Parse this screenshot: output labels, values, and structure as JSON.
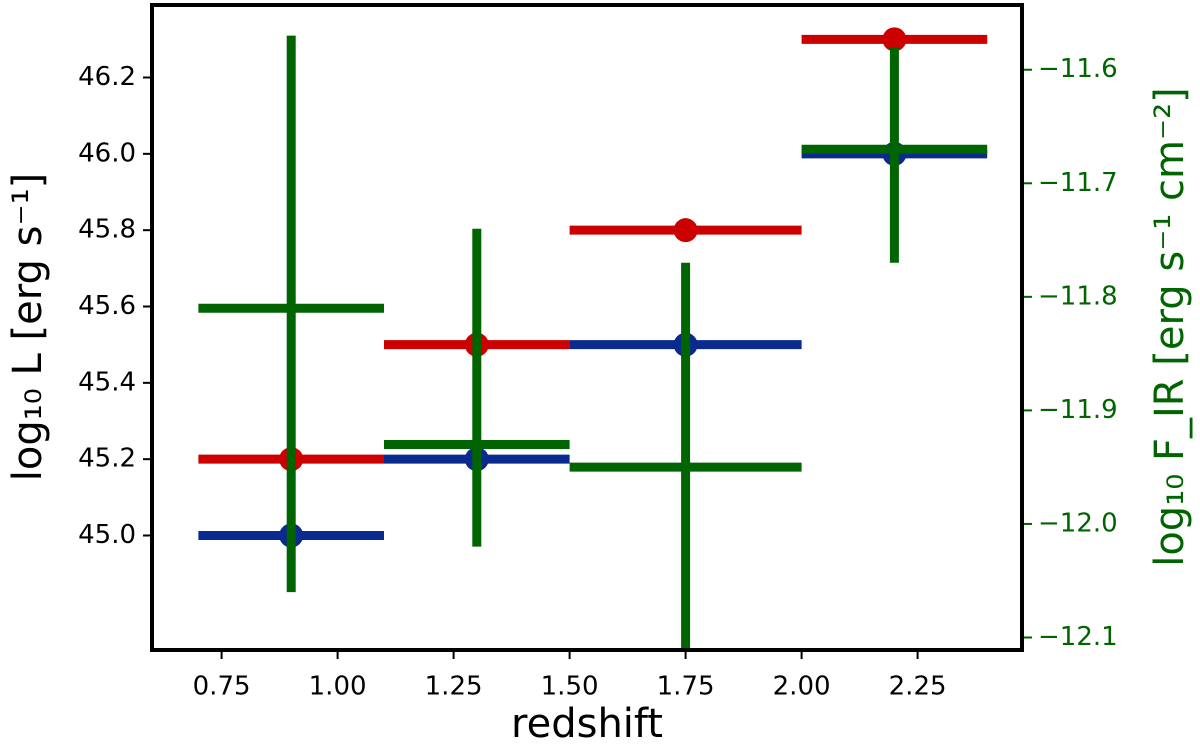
{
  "chart_data": {
    "type": "errorbar",
    "xlabel": "redshift",
    "ylabel": "log₁₀ L [erg s⁻¹]",
    "y2label": "log₁₀ F_IR [erg s⁻¹ cm⁻²]",
    "y2color": "#006400",
    "xlim": [
      0.6,
      2.475
    ],
    "ylim": [
      44.7,
      46.39
    ],
    "y2lim": [
      -12.111,
      -11.543
    ],
    "xticks": [
      0.75,
      {
        "value": 1,
        "label": "1.00"
      },
      1.25,
      {
        "value": 1.5,
        "label": "1.50"
      },
      1.75,
      {
        "value": 2,
        "label": "2.00"
      },
      2.25
    ],
    "yticks": [
      {
        "value": 45,
        "label": "45.0"
      },
      45.2,
      45.4,
      45.6,
      45.8,
      {
        "value": 46,
        "label": "46.0"
      },
      46.2
    ],
    "y2ticks": [
      {
        "value": -12.1,
        "label": "−12.1"
      },
      {
        "value": -12.0,
        "label": "−12.0"
      },
      {
        "value": -11.9,
        "label": "−11.9"
      },
      {
        "value": -11.8,
        "label": "−11.8"
      },
      {
        "value": -11.7,
        "label": "−11.7"
      },
      {
        "value": -11.6,
        "label": "−11.6"
      }
    ],
    "series": [
      {
        "color": "#cc0000",
        "marker": true,
        "x": [
          0.9,
          1.3,
          1.75,
          2.2
        ],
        "xerr": [
          0.2,
          0.2,
          0.25,
          0.2
        ],
        "values": [
          45.2,
          45.5,
          45.8,
          46.3
        ]
      },
      {
        "color": "#0a2a8f",
        "marker": true,
        "x": [
          0.9,
          1.3,
          1.75,
          2.2
        ],
        "xerr": [
          0.2,
          0.2,
          0.25,
          0.2
        ],
        "values": [
          45.0,
          45.2,
          45.5,
          46.0
        ]
      },
      {
        "color": "#006400",
        "marker": false,
        "axis": "y2",
        "x": [
          0.9,
          1.3,
          1.75,
          2.2
        ],
        "xerr": [
          0.2,
          0.2,
          0.25,
          0.2
        ],
        "values": [
          -11.81,
          -11.93,
          -11.95,
          -11.67
        ],
        "yerr_lower": [
          0.25,
          0.09,
          0.16,
          0.1
        ],
        "yerr_upper": [
          0.24,
          0.19,
          0.18,
          0.09
        ]
      }
    ]
  }
}
